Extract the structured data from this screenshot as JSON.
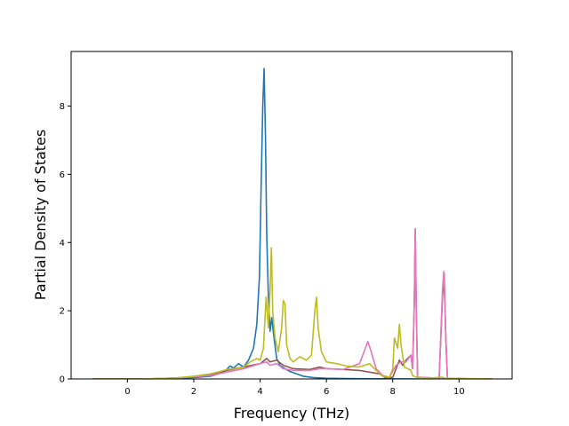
{
  "chart_data": {
    "type": "line",
    "title": "",
    "xlabel": "Frequency (THz)",
    "ylabel": "Partial Density of States",
    "xlim": [
      -1.7,
      11.6
    ],
    "ylim": [
      0,
      9.6
    ],
    "xticks": [
      0,
      2,
      4,
      6,
      8,
      10
    ],
    "yticks": [
      0,
      2,
      4,
      6,
      8
    ],
    "xtick_labels": [
      "0",
      "2",
      "4",
      "6",
      "8",
      "10"
    ],
    "ytick_labels": [
      "0",
      "2",
      "4",
      "6",
      "8"
    ],
    "grid": false,
    "legend": "none",
    "series": [
      {
        "color": "#1f77b4",
        "points": [
          [
            -1.05,
            0
          ],
          [
            0.5,
            0
          ],
          [
            1.0,
            0.01
          ],
          [
            1.5,
            0.02
          ],
          [
            2.0,
            0.04
          ],
          [
            2.5,
            0.08
          ],
          [
            2.9,
            0.2
          ],
          [
            3.1,
            0.38
          ],
          [
            3.2,
            0.32
          ],
          [
            3.35,
            0.45
          ],
          [
            3.5,
            0.35
          ],
          [
            3.65,
            0.55
          ],
          [
            3.8,
            0.9
          ],
          [
            3.9,
            1.6
          ],
          [
            3.98,
            3.0
          ],
          [
            4.03,
            5.6
          ],
          [
            4.08,
            8.0
          ],
          [
            4.12,
            9.1
          ],
          [
            4.16,
            7.2
          ],
          [
            4.2,
            4.2
          ],
          [
            4.25,
            2.4
          ],
          [
            4.3,
            1.4
          ],
          [
            4.35,
            1.8
          ],
          [
            4.42,
            1.2
          ],
          [
            4.5,
            0.6
          ],
          [
            4.6,
            0.4
          ],
          [
            4.75,
            0.3
          ],
          [
            4.9,
            0.22
          ],
          [
            5.1,
            0.15
          ],
          [
            5.3,
            0.08
          ],
          [
            5.6,
            0.04
          ],
          [
            6.0,
            0.02
          ],
          [
            7.0,
            0.01
          ],
          [
            9.0,
            0
          ],
          [
            11.0,
            0
          ]
        ]
      },
      {
        "color": "#8c564b",
        "points": [
          [
            -1.05,
            0
          ],
          [
            0.5,
            0
          ],
          [
            1.5,
            0.03
          ],
          [
            2.5,
            0.12
          ],
          [
            3.0,
            0.25
          ],
          [
            3.5,
            0.35
          ],
          [
            4.0,
            0.45
          ],
          [
            4.2,
            0.6
          ],
          [
            4.3,
            0.5
          ],
          [
            4.5,
            0.55
          ],
          [
            4.7,
            0.4
          ],
          [
            5.0,
            0.3
          ],
          [
            5.5,
            0.28
          ],
          [
            5.8,
            0.35
          ],
          [
            6.0,
            0.3
          ],
          [
            6.5,
            0.28
          ],
          [
            7.0,
            0.25
          ],
          [
            7.3,
            0.2
          ],
          [
            7.6,
            0.15
          ],
          [
            7.8,
            0.02
          ],
          [
            8.0,
            0.05
          ],
          [
            8.2,
            0.55
          ],
          [
            8.3,
            0.4
          ],
          [
            8.4,
            0.55
          ],
          [
            8.55,
            0.7
          ],
          [
            8.6,
            0.3
          ],
          [
            8.65,
            2.2
          ],
          [
            8.68,
            4.4
          ],
          [
            8.71,
            2.0
          ],
          [
            8.75,
            0.05
          ],
          [
            9.4,
            0.02
          ],
          [
            9.5,
            2.4
          ],
          [
            9.55,
            3.1
          ],
          [
            9.6,
            1.2
          ],
          [
            9.65,
            0.02
          ],
          [
            10.5,
            0
          ],
          [
            11.0,
            0
          ]
        ]
      },
      {
        "color": "#e377c2",
        "points": [
          [
            -1.05,
            0
          ],
          [
            0.5,
            0
          ],
          [
            1.5,
            0.03
          ],
          [
            2.5,
            0.1
          ],
          [
            3.0,
            0.2
          ],
          [
            3.5,
            0.3
          ],
          [
            4.0,
            0.45
          ],
          [
            4.2,
            0.5
          ],
          [
            4.3,
            0.4
          ],
          [
            4.5,
            0.45
          ],
          [
            4.7,
            0.3
          ],
          [
            5.0,
            0.25
          ],
          [
            5.5,
            0.25
          ],
          [
            5.8,
            0.3
          ],
          [
            6.0,
            0.3
          ],
          [
            6.5,
            0.28
          ],
          [
            7.0,
            0.45
          ],
          [
            7.25,
            1.1
          ],
          [
            7.35,
            0.8
          ],
          [
            7.5,
            0.3
          ],
          [
            7.7,
            0.1
          ],
          [
            7.9,
            0.05
          ],
          [
            8.1,
            0.4
          ],
          [
            8.25,
            0.5
          ],
          [
            8.4,
            0.5
          ],
          [
            8.55,
            0.7
          ],
          [
            8.6,
            0.3
          ],
          [
            8.65,
            2.3
          ],
          [
            8.68,
            4.4
          ],
          [
            8.71,
            2.1
          ],
          [
            8.75,
            0.05
          ],
          [
            9.4,
            0.02
          ],
          [
            9.5,
            2.6
          ],
          [
            9.54,
            3.15
          ],
          [
            9.6,
            1.3
          ],
          [
            9.65,
            0.02
          ],
          [
            10.5,
            0
          ],
          [
            11.0,
            0
          ]
        ]
      },
      {
        "color": "#bcbd22",
        "points": [
          [
            -1.05,
            0
          ],
          [
            0.5,
            0
          ],
          [
            1.5,
            0.03
          ],
          [
            2.0,
            0.08
          ],
          [
            2.5,
            0.15
          ],
          [
            2.8,
            0.22
          ],
          [
            3.0,
            0.28
          ],
          [
            3.2,
            0.3
          ],
          [
            3.5,
            0.35
          ],
          [
            3.7,
            0.5
          ],
          [
            3.9,
            0.6
          ],
          [
            4.0,
            0.55
          ],
          [
            4.1,
            0.9
          ],
          [
            4.18,
            2.4
          ],
          [
            4.25,
            1.5
          ],
          [
            4.3,
            2.6
          ],
          [
            4.34,
            3.85
          ],
          [
            4.38,
            2.0
          ],
          [
            4.45,
            1.2
          ],
          [
            4.55,
            0.8
          ],
          [
            4.65,
            1.5
          ],
          [
            4.7,
            2.3
          ],
          [
            4.75,
            2.2
          ],
          [
            4.8,
            1.0
          ],
          [
            4.9,
            0.6
          ],
          [
            5.0,
            0.5
          ],
          [
            5.2,
            0.65
          ],
          [
            5.4,
            0.55
          ],
          [
            5.55,
            0.7
          ],
          [
            5.65,
            2.0
          ],
          [
            5.7,
            2.4
          ],
          [
            5.75,
            1.5
          ],
          [
            5.85,
            0.8
          ],
          [
            6.0,
            0.5
          ],
          [
            6.3,
            0.45
          ],
          [
            6.6,
            0.38
          ],
          [
            7.0,
            0.35
          ],
          [
            7.3,
            0.45
          ],
          [
            7.5,
            0.25
          ],
          [
            7.7,
            0.08
          ],
          [
            7.9,
            0.05
          ],
          [
            8.0,
            0.3
          ],
          [
            8.05,
            1.2
          ],
          [
            8.15,
            0.9
          ],
          [
            8.2,
            1.6
          ],
          [
            8.25,
            1.0
          ],
          [
            8.35,
            0.35
          ],
          [
            8.45,
            0.3
          ],
          [
            8.55,
            0.25
          ],
          [
            8.6,
            0.1
          ],
          [
            8.7,
            0.05
          ],
          [
            9.0,
            0.02
          ],
          [
            9.5,
            0.05
          ],
          [
            9.6,
            0.02
          ],
          [
            11.0,
            0
          ]
        ]
      }
    ]
  }
}
